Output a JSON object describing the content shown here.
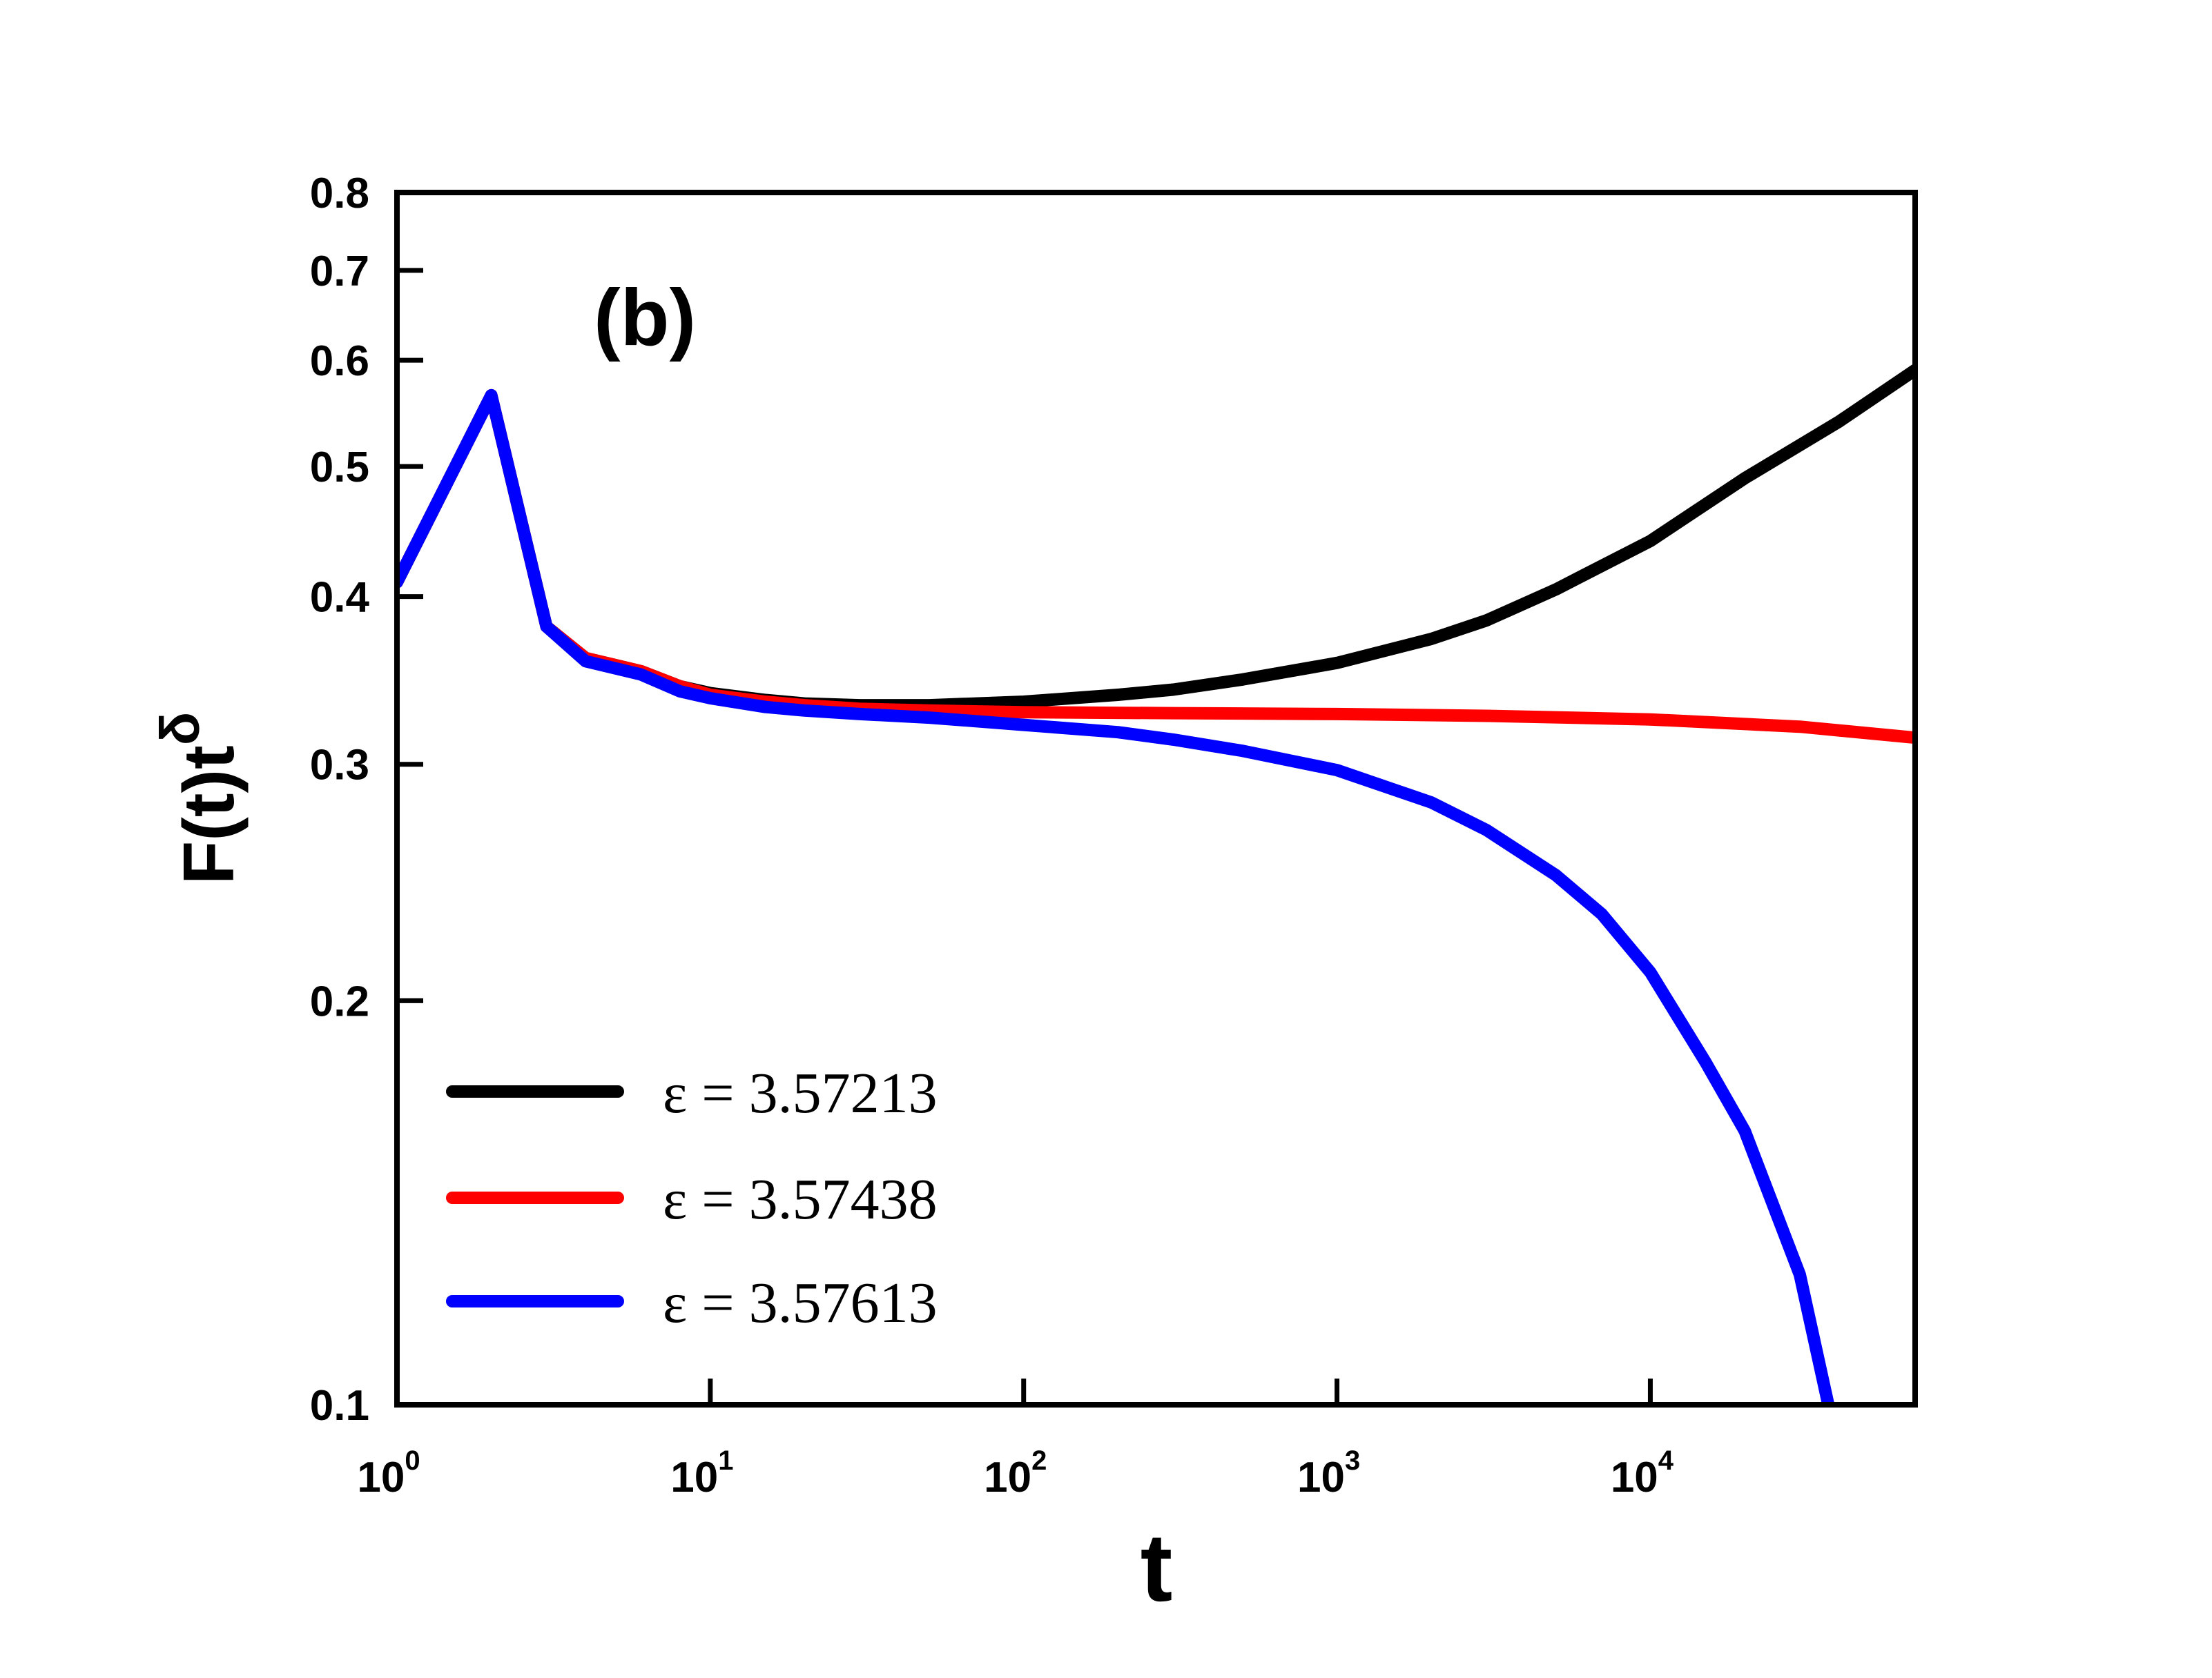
{
  "chart_data": {
    "type": "line",
    "panel_label": "(b)",
    "xlabel": "t",
    "ylabel": {
      "base": "F(t)t",
      "superscript": "δ"
    },
    "x_scale": "log",
    "y_scale": "log",
    "xlim": [
      1,
      70000
    ],
    "ylim": [
      0.1,
      0.8
    ],
    "x_ticks": [
      {
        "value": 1,
        "base": "10",
        "exp": "0"
      },
      {
        "value": 10,
        "base": "10",
        "exp": "1"
      },
      {
        "value": 100,
        "base": "10",
        "exp": "2"
      },
      {
        "value": 1000,
        "base": "10",
        "exp": "3"
      },
      {
        "value": 10000,
        "base": "10",
        "exp": "4"
      }
    ],
    "y_ticks": [
      {
        "value": 0.1,
        "label": "0.1"
      },
      {
        "value": 0.2,
        "label": "0.2"
      },
      {
        "value": 0.3,
        "label": "0.3"
      },
      {
        "value": 0.4,
        "label": "0.4"
      },
      {
        "value": 0.5,
        "label": "0.5"
      },
      {
        "value": 0.6,
        "label": "0.6"
      },
      {
        "value": 0.7,
        "label": "0.7"
      },
      {
        "value": 0.8,
        "label": "0.8"
      }
    ],
    "legend_position": "bottom-left",
    "series": [
      {
        "name": "ε = 3.57213",
        "color": "#000000",
        "points": [
          [
            1,
            0.41
          ],
          [
            2,
            0.565
          ],
          [
            3,
            0.38
          ],
          [
            4,
            0.36
          ],
          [
            6,
            0.352
          ],
          [
            8,
            0.343
          ],
          [
            10,
            0.339
          ],
          [
            15,
            0.335
          ],
          [
            20,
            0.333
          ],
          [
            30,
            0.332
          ],
          [
            50,
            0.332
          ],
          [
            100,
            0.334
          ],
          [
            200,
            0.338
          ],
          [
            300,
            0.341
          ],
          [
            500,
            0.347
          ],
          [
            1000,
            0.357
          ],
          [
            2000,
            0.372
          ],
          [
            3000,
            0.384
          ],
          [
            5000,
            0.405
          ],
          [
            10000,
            0.44
          ],
          [
            20000,
            0.49
          ],
          [
            40000,
            0.54
          ],
          [
            70000,
            0.59
          ]
        ]
      },
      {
        "name": "ε = 3.57438",
        "color": "#ff0000",
        "points": [
          [
            1,
            0.41
          ],
          [
            2,
            0.565
          ],
          [
            3,
            0.38
          ],
          [
            4,
            0.36
          ],
          [
            6,
            0.352
          ],
          [
            8,
            0.343
          ],
          [
            10,
            0.338
          ],
          [
            15,
            0.334
          ],
          [
            20,
            0.332
          ],
          [
            30,
            0.33
          ],
          [
            50,
            0.329
          ],
          [
            100,
            0.328
          ],
          [
            300,
            0.3275
          ],
          [
            1000,
            0.327
          ],
          [
            3000,
            0.326
          ],
          [
            10000,
            0.324
          ],
          [
            30000,
            0.32
          ],
          [
            70000,
            0.314
          ]
        ]
      },
      {
        "name": "ε = 3.57613",
        "color": "#0000ff",
        "points": [
          [
            1,
            0.41
          ],
          [
            2,
            0.565
          ],
          [
            3,
            0.38
          ],
          [
            4,
            0.358
          ],
          [
            6,
            0.35
          ],
          [
            8,
            0.34
          ],
          [
            10,
            0.336
          ],
          [
            15,
            0.331
          ],
          [
            20,
            0.329
          ],
          [
            30,
            0.327
          ],
          [
            50,
            0.325
          ],
          [
            100,
            0.321
          ],
          [
            200,
            0.317
          ],
          [
            300,
            0.313
          ],
          [
            500,
            0.307
          ],
          [
            1000,
            0.297
          ],
          [
            2000,
            0.281
          ],
          [
            3000,
            0.268
          ],
          [
            5000,
            0.248
          ],
          [
            7000,
            0.232
          ],
          [
            10000,
            0.21
          ],
          [
            15000,
            0.18
          ],
          [
            20000,
            0.16
          ],
          [
            30000,
            0.125
          ],
          [
            37000,
            0.1
          ]
        ]
      }
    ]
  }
}
